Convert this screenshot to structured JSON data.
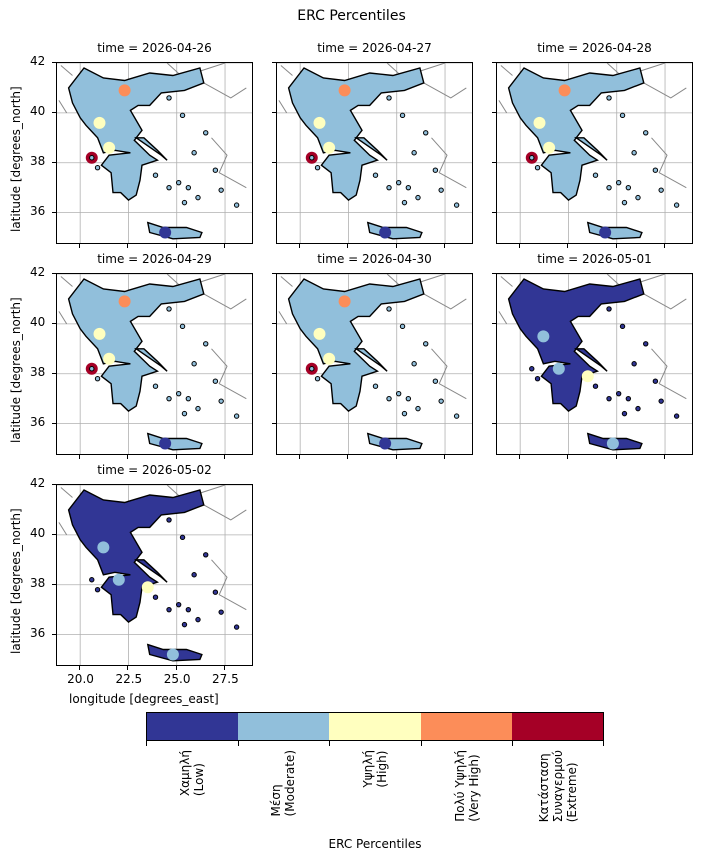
{
  "figure": {
    "title": "ERC Percentiles",
    "ylabel": "latitude [degrees_north]",
    "xlabel": "longitude [degrees_east]",
    "y_ticks": [
      "42",
      "40",
      "38",
      "36"
    ],
    "x_ticks": [
      "20.0",
      "22.5",
      "25.0",
      "27.5"
    ]
  },
  "panels": [
    {
      "title": "time = 2026-04-26",
      "dominant": "moderate"
    },
    {
      "title": "time = 2026-04-27",
      "dominant": "moderate"
    },
    {
      "title": "time = 2026-04-28",
      "dominant": "moderate"
    },
    {
      "title": "time = 2026-04-29",
      "dominant": "moderate"
    },
    {
      "title": "time = 2026-04-30",
      "dominant": "moderate"
    },
    {
      "title": "time = 2026-05-01",
      "dominant": "low"
    },
    {
      "title": "time = 2026-05-02",
      "dominant": "low"
    }
  ],
  "colorbar": {
    "title": "ERC Percentiles",
    "classes": [
      {
        "label": "Χαμηλή\n(Low)",
        "color": "#313695"
      },
      {
        "label": "Μέση\n(Moderate)",
        "color": "#91bfdb"
      },
      {
        "label": "Υψηλή\n(High)",
        "color": "#ffffbf"
      },
      {
        "label": "Πολύ Υψηλή\n(Very High)",
        "color": "#fc8d59"
      },
      {
        "label": "Κατάσταση\nΣυναγερμού\n(Extreme)",
        "color": "#a50026"
      }
    ]
  },
  "map_extent": {
    "lon": [
      18.8,
      29.0
    ],
    "lat": [
      34.7,
      42.0
    ]
  }
}
